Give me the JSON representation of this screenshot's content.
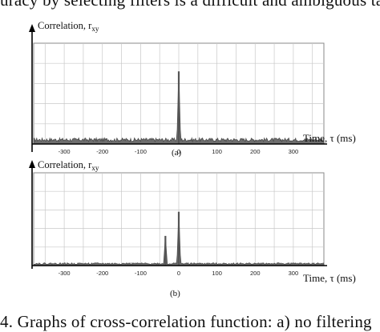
{
  "text": {
    "top_line": "uracy by selecting filters is a difficult and ambiguous task",
    "bottom_line": "4.     Graphs     of     cross-correlation     function:     a) no     filtering"
  },
  "colors": {
    "signal_fill": "#6e6e6e",
    "grid": "#c8c8c8",
    "axis": "#000000"
  },
  "chart_data": [
    {
      "type": "line",
      "ylabel": "Correlation, r",
      "ylabel_subscript": "xy",
      "xlabel": "Time, τ (ms)",
      "caption": "(a)",
      "x_tick_labels": [
        "-300",
        "-200",
        "-100",
        "0",
        "100",
        "200",
        "300"
      ],
      "x_ticks": [
        -300,
        -200,
        -100,
        0,
        100,
        200,
        300
      ],
      "xlim": [
        -380,
        380
      ],
      "ylim": [
        0,
        1
      ],
      "grid": true,
      "noise_level": 0.06,
      "peaks": [
        {
          "x": 0,
          "y": 0.72
        }
      ]
    },
    {
      "type": "line",
      "ylabel": "Correlation, r",
      "ylabel_subscript": "xy",
      "xlabel": "Time, τ (ms)",
      "caption": "(b)",
      "x_tick_labels": [
        "-300",
        "-200",
        "-100",
        "0",
        "100",
        "200",
        "300"
      ],
      "x_ticks": [
        -300,
        -200,
        -100,
        0,
        100,
        200,
        300
      ],
      "xlim": [
        -380,
        380
      ],
      "ylim": [
        0,
        1
      ],
      "grid": true,
      "noise_level": 0.03,
      "peaks": [
        {
          "x": -35,
          "y": 0.32
        },
        {
          "x": 0,
          "y": 0.58
        }
      ]
    }
  ]
}
